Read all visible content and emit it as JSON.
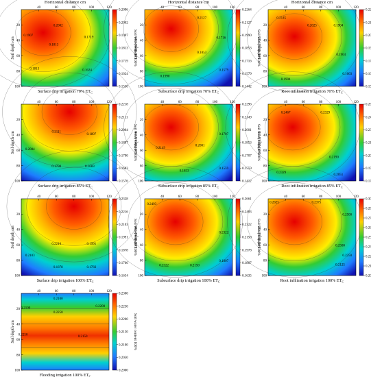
{
  "figure": {
    "x_axis_label": "Horizontal distance cm",
    "y_axis_label": "Soil depth cm",
    "colorbar_label": "Soil water content 100%",
    "x_ticks": [
      40,
      60,
      80,
      100,
      120
    ],
    "y_ticks": [
      20,
      40,
      60,
      80,
      100
    ]
  },
  "chart_data": [
    {
      "type": "heatmap",
      "caption": "Surface drip irrigation 70% ET",
      "caption_sub": "C",
      "show_top_axis": true,
      "hotspot": [
        0.25,
        0.3
      ],
      "gradient": "top_to_bottom",
      "xlim": [
        20,
        120
      ],
      "ylim": [
        0,
        100
      ],
      "colorbar": [
        "0.2096",
        "0.2002",
        "0.1907",
        "0.1813",
        "0.1719",
        "0.1624",
        "0.1530"
      ],
      "contour_labels": [
        {
          "text": "0.2002",
          "x": 62,
          "y": 22
        },
        {
          "text": "0.1907",
          "x": 28,
          "y": 35
        },
        {
          "text": "0.1813",
          "x": 57,
          "y": 47
        },
        {
          "text": "0.1719",
          "x": 97,
          "y": 37
        },
        {
          "text": "0.1813",
          "x": 35,
          "y": 78
        },
        {
          "text": "0.1624",
          "x": 95,
          "y": 80
        }
      ]
    },
    {
      "type": "heatmap",
      "caption": "Subsurface drip irrigation 70% ET",
      "caption_sub": "C",
      "show_top_axis": true,
      "hotspot": [
        0.3,
        0.25
      ],
      "gradient": "blob",
      "xlim": [
        20,
        120
      ],
      "ylim": [
        0,
        100
      ],
      "colorbar": [
        "0.2264",
        "0.2127",
        "0.1990",
        "0.1853",
        "0.1716",
        "0.1579",
        "0.1442"
      ],
      "contour_labels": [
        {
          "text": "0.2127",
          "x": 85,
          "y": 12
        },
        {
          "text": "0.1716",
          "x": 107,
          "y": 38
        },
        {
          "text": "0.1853",
          "x": 85,
          "y": 57
        },
        {
          "text": "0.1990",
          "x": 43,
          "y": 88
        },
        {
          "text": "0.1579",
          "x": 110,
          "y": 80
        }
      ]
    },
    {
      "type": "heatmap",
      "caption": "Root infiltration irrigation 70% ET",
      "caption_sub": "C",
      "show_top_axis": true,
      "hotspot": [
        0.3,
        0.35
      ],
      "gradient": "blob",
      "xlim": [
        20,
        120
      ],
      "ylim": [
        0,
        100
      ],
      "colorbar": [
        "0.2269",
        "0.2145",
        "0.2025",
        "0.1904",
        "0.1783",
        "0.1663",
        "0.1542"
      ],
      "contour_labels": [
        {
          "text": "0.2145",
          "x": 35,
          "y": 12
        },
        {
          "text": "0.2025",
          "x": 70,
          "y": 22
        },
        {
          "text": "0.1904",
          "x": 100,
          "y": 22
        },
        {
          "text": "0.1904",
          "x": 40,
          "y": 92
        },
        {
          "text": "0.1663",
          "x": 110,
          "y": 85
        },
        {
          "text": "0.1904",
          "x": 103,
          "y": 60
        }
      ]
    },
    {
      "type": "heatmap",
      "caption": "Surface drip irrigation 85% ET",
      "caption_sub": "C",
      "show_top_axis": true,
      "hotspot": [
        0.55,
        0.1
      ],
      "gradient": "top_to_bottom",
      "xlim": [
        20,
        120
      ],
      "ylim": [
        0,
        100
      ],
      "colorbar": [
        "0.2218",
        "0.2111",
        "0.2004",
        "0.1897",
        "0.1790",
        "0.1683",
        "0.1576"
      ],
      "contour_labels": [
        {
          "text": "0.2111",
          "x": 60,
          "y": 37
        },
        {
          "text": "0.1897",
          "x": 100,
          "y": 40
        },
        {
          "text": "0.2004",
          "x": 30,
          "y": 60
        },
        {
          "text": "0.1790",
          "x": 60,
          "y": 82
        },
        {
          "text": "0.1683",
          "x": 98,
          "y": 82
        }
      ]
    },
    {
      "type": "heatmap",
      "caption": "Subsurface drip irrigation 85% ET",
      "caption_sub": "C",
      "show_top_axis": true,
      "hotspot": [
        0.3,
        0.3
      ],
      "gradient": "blob",
      "xlim": [
        20,
        120
      ],
      "ylim": [
        0,
        100
      ],
      "colorbar": [
        "0.2296",
        "0.2149",
        "0.2001",
        "0.1853",
        "0.1707",
        "0.1559",
        "0.1412"
      ],
      "contour_labels": [
        {
          "text": "0.2149",
          "x": 38,
          "y": 58
        },
        {
          "text": "0.2001",
          "x": 83,
          "y": 55
        },
        {
          "text": "0.1707",
          "x": 110,
          "y": 40
        },
        {
          "text": "0.1853",
          "x": 65,
          "y": 88
        },
        {
          "text": "0.1559",
          "x": 110,
          "y": 85
        }
      ]
    },
    {
      "type": "heatmap",
      "caption": "Root infiltration irrigation 85% ET",
      "caption_sub": "C",
      "show_top_axis": true,
      "hotspot": [
        0.28,
        0.3
      ],
      "gradient": "blob",
      "xlim": [
        20,
        120
      ],
      "ylim": [
        0,
        100
      ],
      "colorbar": [
        "0.2696",
        "0.2467",
        "0.2329",
        "0.2190",
        "0.2051",
        "0.1913",
        "0.1774"
      ],
      "contour_labels": [
        {
          "text": "0.2467",
          "x": 40,
          "y": 12
        },
        {
          "text": "0.2329",
          "x": 85,
          "y": 12
        },
        {
          "text": "0.2190",
          "x": 95,
          "y": 70
        },
        {
          "text": "0.2329",
          "x": 35,
          "y": 90
        },
        {
          "text": "0.2051",
          "x": 100,
          "y": 93
        }
      ]
    },
    {
      "type": "heatmap",
      "caption": "Surface drip irrigation 100% ET",
      "caption_sub": "C",
      "show_top_axis": true,
      "hotspot": [
        0.6,
        0.1
      ],
      "gradient": "top_to_bottom",
      "xlim": [
        20,
        120
      ],
      "ylim": [
        0,
        100
      ],
      "colorbar": [
        "0.2328",
        "0.2216",
        "0.2103",
        "0.1991",
        "0.1878",
        "0.1766",
        "0.1654"
      ],
      "contour_labels": [
        {
          "text": "0.2216",
          "x": 60,
          "y": 60
        },
        {
          "text": "0.1991",
          "x": 100,
          "y": 60
        },
        {
          "text": "0.2103",
          "x": 30,
          "y": 75
        },
        {
          "text": "0.1878",
          "x": 62,
          "y": 90
        },
        {
          "text": "0.1766",
          "x": 100,
          "y": 90
        }
      ]
    },
    {
      "type": "heatmap",
      "caption": "Subsurface drip irrigation 100% ET",
      "caption_sub": "C",
      "show_top_axis": true,
      "hotspot": [
        0.35,
        0.3
      ],
      "gradient": "blob",
      "xlim": [
        20,
        120
      ],
      "ylim": [
        0,
        100
      ],
      "colorbar": [
        "0.2661",
        "0.2493",
        "0.2322",
        "0.2150",
        "0.1978",
        "0.1807",
        "0.1635"
      ],
      "contour_labels": [
        {
          "text": "0.2493",
          "x": 28,
          "y": 8
        },
        {
          "text": "0.2322",
          "x": 110,
          "y": 45
        },
        {
          "text": "0.2322",
          "x": 42,
          "y": 88
        },
        {
          "text": "0.2150",
          "x": 77,
          "y": 88
        },
        {
          "text": "0.1807",
          "x": 110,
          "y": 82
        }
      ]
    },
    {
      "type": "heatmap",
      "caption": "Root infiltration irrigation 100% ET",
      "caption_sub": "C",
      "show_top_axis": true,
      "hotspot": [
        0.3,
        0.3
      ],
      "gradient": "blob",
      "xlim": [
        20,
        120
      ],
      "ylim": [
        0,
        100
      ],
      "colorbar": [
        "0.3000",
        "0.2875",
        "0.2750",
        "0.2625",
        "0.2500",
        "0.2375",
        "0.2250",
        "0.2125",
        "0.2000"
      ],
      "contour_labels": [
        {
          "text": "0.2625",
          "x": 27,
          "y": 6
        },
        {
          "text": "0.2375",
          "x": 75,
          "y": 6
        },
        {
          "text": "0.2500",
          "x": 110,
          "y": 22
        },
        {
          "text": "0.2500",
          "x": 102,
          "y": 62
        },
        {
          "text": "0.2250",
          "x": 110,
          "y": 75
        },
        {
          "text": "0.2125",
          "x": 102,
          "y": 87
        }
      ]
    },
    {
      "type": "heatmap",
      "caption": "Flooding irrigation 100% ET",
      "caption_sub": "C",
      "show_top_axis": true,
      "hotspot": [
        0.35,
        0.55
      ],
      "gradient": "flood",
      "xlim": [
        20,
        120
      ],
      "ylim": [
        0,
        100
      ],
      "colorbar": [
        "0.2300",
        "0.2250",
        "0.2200",
        "0.2150",
        "0.2100",
        "0.2050",
        "0.2000"
      ],
      "contour_labels": [
        {
          "text": "0.2100",
          "x": 62,
          "y": 8
        },
        {
          "text": "0.2100",
          "x": 25,
          "y": 20
        },
        {
          "text": "0.2200",
          "x": 110,
          "y": 18
        },
        {
          "text": "0.2250",
          "x": 62,
          "y": 26
        },
        {
          "text": "0.2250",
          "x": 22,
          "y": 55
        },
        {
          "text": "0.2150",
          "x": 90,
          "y": 57
        }
      ]
    }
  ]
}
